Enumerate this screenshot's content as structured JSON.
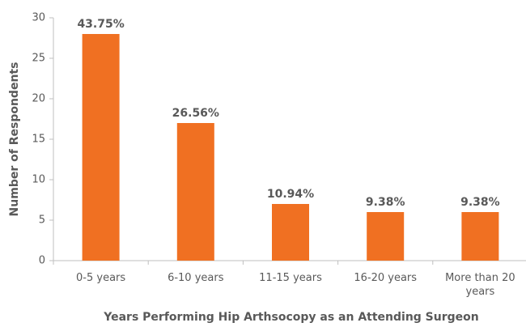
{
  "chart_data": {
    "type": "bar",
    "xlabel": "Years Performing Hip Arthsocopy as an Attending Surgeon",
    "ylabel": "Number of Respondents",
    "categories": [
      "0-5 years",
      "6-10 years",
      "11-15 years",
      "16-20 years",
      "More than 20 years"
    ],
    "values": [
      28,
      17,
      7,
      6,
      6
    ],
    "value_labels": [
      "43.75%",
      "26.56%",
      "10.94%",
      "9.38%",
      "9.38%"
    ],
    "color": "#f07022",
    "ylim": [
      0,
      30
    ],
    "yticks": [
      0,
      5,
      10,
      15,
      20,
      25,
      30
    ],
    "grid": false
  }
}
